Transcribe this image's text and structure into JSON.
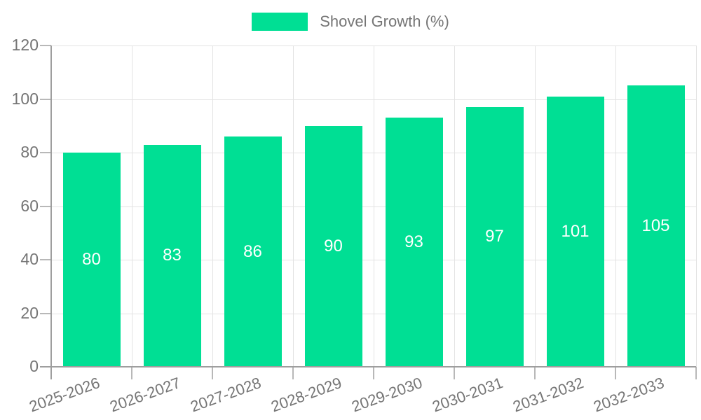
{
  "chart_data": {
    "type": "bar",
    "title": "",
    "xlabel": "",
    "ylabel": "",
    "categories": [
      "2025-2026",
      "2026-2027",
      "2027-2028",
      "2028-2029",
      "2029-2030",
      "2030-2031",
      "2031-2032",
      "2032-2033"
    ],
    "series": [
      {
        "name": "Shovel Growth (%)",
        "values": [
          80,
          83,
          86,
          90,
          93,
          97,
          101,
          105
        ]
      }
    ],
    "value_labels": [
      "80",
      "83",
      "86",
      "90",
      "93",
      "97",
      "101",
      "105"
    ],
    "value_labels_position": "inside-center",
    "ylim": [
      0,
      120
    ],
    "yticks": [
      0,
      20,
      40,
      60,
      80,
      100,
      120
    ],
    "grid": true,
    "legend": {
      "label": "Shovel Growth (%)",
      "position": "top"
    },
    "colors": {
      "bar": "#00DF94",
      "value_label": "#ffffff",
      "axis": "#9e9e9e",
      "tick": "#b8b8b8",
      "grid": "#e3e3e3",
      "text": "#757575"
    }
  }
}
